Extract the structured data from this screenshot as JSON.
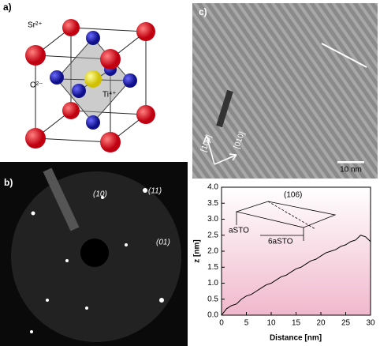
{
  "panels": {
    "a": {
      "label": "a)",
      "ions": [
        "Sr²⁺",
        "O²⁻",
        "Ti⁴⁺"
      ]
    },
    "b": {
      "label": "b)",
      "spots": [
        "(10)",
        "(11)",
        "(01)"
      ]
    },
    "c": {
      "label": "c)",
      "directions": [
        "[100]",
        "[010]"
      ],
      "scale_bar": "10 nm"
    }
  },
  "chart_data": {
    "type": "line",
    "x_label": "Distance [nm]",
    "y_label": "z [nm]",
    "annotations": [
      "(106)",
      "aSTO",
      "6aSTO"
    ],
    "x": [
      0,
      1,
      2,
      3,
      4,
      5,
      6,
      7,
      8,
      9,
      10,
      11,
      12,
      13,
      14,
      15,
      16,
      17,
      18,
      19,
      20,
      21,
      22,
      23,
      24,
      25,
      26,
      27,
      28,
      29,
      30
    ],
    "series": [
      {
        "color": "#000000",
        "values": [
          0.0,
          0.2,
          0.3,
          0.35,
          0.5,
          0.6,
          0.65,
          0.75,
          0.85,
          0.95,
          1.0,
          1.1,
          1.2,
          1.25,
          1.35,
          1.45,
          1.5,
          1.6,
          1.7,
          1.75,
          1.85,
          1.95,
          2.0,
          2.05,
          2.15,
          2.2,
          2.3,
          2.35,
          2.5,
          2.45,
          2.3
        ]
      }
    ],
    "xlim": [
      0,
      30
    ],
    "xticks": [
      0,
      5,
      10,
      15,
      20,
      25,
      30
    ],
    "ylim": [
      0,
      4.0
    ],
    "yticks": [
      {
        "value": 0,
        "label": "0.0"
      },
      0.5,
      {
        "value": 1,
        "label": "1.0"
      },
      1.5,
      {
        "value": 2,
        "label": "2.0"
      },
      2.5,
      {
        "value": 3,
        "label": "3.0"
      },
      3.5,
      {
        "value": 4,
        "label": "4.0"
      }
    ]
  }
}
